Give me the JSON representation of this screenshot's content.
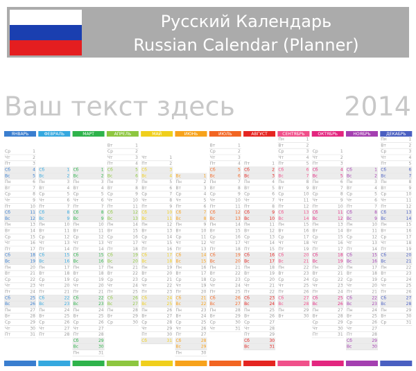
{
  "header": {
    "title_ru": "Русский Календарь",
    "title_en": "Russian Calendar (Planner)"
  },
  "placeholder": "Ваш текст здесь",
  "year": "2014",
  "weekday_names": [
    "Пн",
    "Вт",
    "Ср",
    "Чт",
    "Пт",
    "Сб",
    "Вс"
  ],
  "months": [
    {
      "name": "ЯНВАРЬ",
      "color": "#3a7ecf",
      "dates": [
        1,
        2,
        3,
        4,
        5,
        6,
        7,
        8,
        9,
        10,
        11,
        12,
        13,
        14,
        15,
        16,
        17,
        18,
        19,
        20,
        21,
        22,
        23,
        24,
        25,
        26,
        27,
        28,
        29,
        30,
        31
      ]
    },
    {
      "name": "ФЕВРАЛЬ",
      "color": "#35a8df",
      "dates": [
        1,
        2,
        3,
        4,
        5,
        6,
        7,
        8,
        9,
        10,
        11,
        12,
        13,
        14,
        15,
        16,
        17,
        18,
        19,
        20,
        21,
        22,
        23,
        24,
        25,
        26,
        27,
        28
      ]
    },
    {
      "name": "МАРТ",
      "color": "#2eb34b",
      "dates": [
        1,
        2,
        3,
        4,
        5,
        6,
        7,
        8,
        9,
        10,
        11,
        12,
        13,
        14,
        15,
        16,
        17,
        18,
        19,
        20,
        21,
        22,
        23,
        24,
        25,
        26,
        27,
        28,
        29,
        30,
        31
      ]
    },
    {
      "name": "АПРЕЛЬ",
      "color": "#8dc63f",
      "dates": [
        1,
        2,
        3,
        4,
        5,
        6,
        7,
        8,
        9,
        10,
        11,
        12,
        13,
        14,
        15,
        16,
        17,
        18,
        19,
        20,
        21,
        22,
        23,
        24,
        25,
        26,
        27,
        28,
        29,
        30
      ]
    },
    {
      "name": "МАЙ",
      "color": "#f0cf1c",
      "dates": [
        1,
        2,
        3,
        4,
        5,
        6,
        7,
        8,
        9,
        10,
        11,
        12,
        13,
        14,
        15,
        16,
        17,
        18,
        19,
        20,
        21,
        22,
        23,
        24,
        25,
        26,
        27,
        28,
        29,
        30,
        31
      ]
    },
    {
      "name": "ИЮНЬ",
      "color": "#f7a21b",
      "dates": [
        1,
        2,
        3,
        4,
        5,
        6,
        7,
        8,
        9,
        10,
        11,
        12,
        13,
        14,
        15,
        16,
        17,
        18,
        19,
        20,
        21,
        22,
        23,
        24,
        25,
        26,
        27,
        28,
        29,
        30
      ]
    },
    {
      "name": "ИЮЛЬ",
      "color": "#f26522",
      "dates": [
        1,
        2,
        3,
        4,
        5,
        6,
        7,
        8,
        9,
        10,
        11,
        12,
        13,
        14,
        15,
        16,
        17,
        18,
        19,
        20,
        21,
        22,
        23,
        24,
        25,
        26,
        27,
        28,
        29,
        30,
        31
      ]
    },
    {
      "name": "АВГУСТ",
      "color": "#e52521",
      "dates": [
        1,
        2,
        3,
        4,
        5,
        6,
        7,
        8,
        9,
        10,
        11,
        12,
        13,
        14,
        15,
        16,
        17,
        18,
        19,
        20,
        21,
        22,
        23,
        24,
        25,
        26,
        27,
        28,
        29,
        30,
        31
      ]
    },
    {
      "name": "СЕНТЯБРЬ",
      "color": "#f0508a",
      "dates": [
        1,
        2,
        3,
        4,
        5,
        6,
        7,
        8,
        9,
        10,
        11,
        12,
        13,
        14,
        15,
        16,
        17,
        18,
        19,
        20,
        21,
        22,
        23,
        24,
        25,
        26,
        27,
        28,
        29,
        30
      ]
    },
    {
      "name": "ОКТЯБРЬ",
      "color": "#e3267f",
      "dates": [
        1,
        2,
        3,
        4,
        5,
        6,
        7,
        8,
        9,
        10,
        11,
        12,
        13,
        14,
        15,
        16,
        17,
        18,
        19,
        20,
        21,
        22,
        23,
        24,
        25,
        26,
        27,
        28,
        29,
        30,
        31
      ]
    },
    {
      "name": "НОЯБРЬ",
      "color": "#a43fb0",
      "dates": [
        1,
        2,
        3,
        4,
        5,
        6,
        7,
        8,
        9,
        10,
        11,
        12,
        13,
        14,
        15,
        16,
        17,
        18,
        19,
        20,
        21,
        22,
        23,
        24,
        25,
        26,
        27,
        28,
        29,
        30
      ]
    },
    {
      "name": "ДЕКАБРЬ",
      "color": "#4a5fc1",
      "dates": [
        1,
        2,
        3,
        4,
        5,
        6,
        7,
        8,
        9,
        10,
        11,
        12,
        13,
        14,
        15,
        16,
        17,
        18,
        19,
        20,
        21,
        22,
        23,
        24,
        25,
        26,
        27,
        28,
        29,
        30,
        31
      ]
    }
  ]
}
